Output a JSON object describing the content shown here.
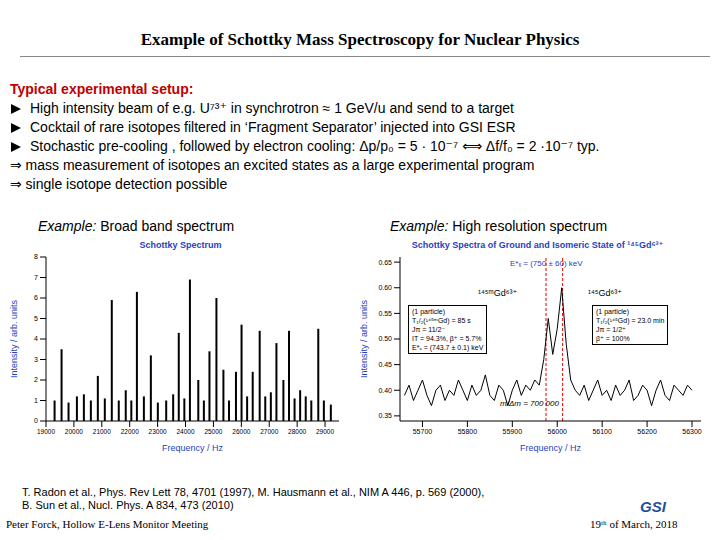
{
  "title": "Example of Schottky Mass Spectroscopy for Nuclear Physics",
  "setup": {
    "heading": "Typical experimental setup:",
    "bullets": [
      "High intensity beam of e.g. U⁷³⁺ in synchrotron ≈ 1 GeV/u and send to a target",
      "Cocktail of rare isotopes filtered in ‘Fragment Separator’ injected into GSI ESR",
      "Stochastic pre-cooling , followed by electron cooling: Δp/p₀ = 5 · 10⁻⁷ ⟺ Δf/f₀ = 2 ·10⁻⁷ typ."
    ],
    "results": [
      "⇒ mass measurement of isotopes an excited states as a large experimental program",
      "⇒ single isotope detection possible"
    ]
  },
  "chart_data": [
    {
      "type": "bar",
      "caption_lead": "Example:",
      "caption": "Broad band spectrum",
      "title": "Schottky Spectrum",
      "x_label": "Frequency / Hz",
      "y_label": "Intensity / arb. units",
      "color": "#000000",
      "grid": false,
      "x": [
        19300,
        19550,
        19800,
        20100,
        20350,
        20600,
        20850,
        21100,
        21350,
        21600,
        21850,
        22050,
        22250,
        22500,
        22750,
        23000,
        23300,
        23550,
        23750,
        23950,
        24150,
        24450,
        24650,
        24850,
        25100,
        25350,
        25550,
        25800,
        26000,
        26200,
        26400,
        26650,
        26850,
        27050,
        27250,
        27500,
        27700,
        27900,
        28100,
        28300,
        28500,
        28750,
        28950,
        29200
      ],
      "values": [
        1.0,
        3.5,
        0.9,
        1.2,
        1.3,
        1.0,
        2.2,
        1.1,
        5.9,
        1.0,
        1.5,
        1.0,
        6.3,
        1.2,
        3.2,
        0.9,
        1.0,
        1.3,
        4.3,
        1.1,
        6.9,
        2.0,
        1.0,
        3.4,
        6.0,
        2.5,
        1.0,
        2.4,
        4.7,
        1.2,
        2.4,
        4.4,
        1.2,
        1.4,
        3.8,
        2.0,
        4.4,
        1.1,
        1.5,
        1.2,
        1.0,
        4.5,
        1.0,
        0.8
      ],
      "xlim": [
        19000,
        29500
      ],
      "ylim": [
        0,
        8
      ],
      "xticks": [
        19000,
        20000,
        21000,
        22000,
        23000,
        24000,
        25000,
        26000,
        27000,
        28000,
        29000
      ],
      "yticks": [
        0,
        1,
        2,
        3,
        4,
        5,
        6,
        7,
        8
      ]
    },
    {
      "type": "line",
      "caption_lead": "Example:",
      "caption": "High resolution spectrum",
      "title": "Schottky Spectra of Ground and Isomeric State of ¹⁴⁵Gd⁶³⁺",
      "x_label": "Frequency / Hz",
      "y_label": "Intensity / arb. units",
      "color": "#000000",
      "grid": false,
      "x": [
        55660,
        55670,
        55680,
        55690,
        55700,
        55710,
        55720,
        55730,
        55740,
        55750,
        55760,
        55770,
        55780,
        55790,
        55800,
        55810,
        55820,
        55830,
        55840,
        55850,
        55860,
        55870,
        55880,
        55890,
        55900,
        55910,
        55920,
        55930,
        55940,
        55950,
        55960,
        55970,
        55980,
        55990,
        56000,
        56010,
        56020,
        56030,
        56040,
        56050,
        56060,
        56070,
        56080,
        56090,
        56100,
        56110,
        56120,
        56130,
        56140,
        56150,
        56160,
        56170,
        56180,
        56190,
        56200,
        56210,
        56220,
        56230,
        56240,
        56250,
        56260,
        56270,
        56280,
        56290,
        56300
      ],
      "values": [
        0.39,
        0.41,
        0.38,
        0.4,
        0.42,
        0.39,
        0.37,
        0.4,
        0.41,
        0.38,
        0.4,
        0.39,
        0.42,
        0.4,
        0.38,
        0.41,
        0.39,
        0.4,
        0.43,
        0.39,
        0.38,
        0.41,
        0.4,
        0.37,
        0.4,
        0.42,
        0.39,
        0.41,
        0.4,
        0.42,
        0.41,
        0.46,
        0.54,
        0.47,
        0.52,
        0.6,
        0.49,
        0.42,
        0.4,
        0.39,
        0.41,
        0.38,
        0.4,
        0.42,
        0.39,
        0.4,
        0.38,
        0.41,
        0.39,
        0.4,
        0.42,
        0.38,
        0.39,
        0.41,
        0.4,
        0.37,
        0.4,
        0.42,
        0.39,
        0.38,
        0.41,
        0.4,
        0.39,
        0.41,
        0.4
      ],
      "xlim": [
        55650,
        56320
      ],
      "ylim": [
        0.34,
        0.66
      ],
      "xticks": [
        55700,
        55800,
        55900,
        56000,
        56100,
        56200,
        56300
      ],
      "yticks": [
        0.35,
        {
          "value": 0.4,
          "label": "0.40"
        },
        0.45,
        {
          "value": 0.5,
          "label": "0.50"
        },
        0.55,
        {
          "value": 0.6,
          "label": "0.60"
        },
        0.65
      ],
      "reference_lines": [
        55975,
        56012
      ],
      "annotations": {
        "energy": "E*ₓ = (750 ± 60) keV",
        "isomer_label": "¹⁴⁵ᵐGd⁶³⁺",
        "ground_label": "¹⁴⁵Gd⁶³⁺",
        "isomer_box": [
          "(1 particle)",
          "T₁/₂(¹⁴⁵ᵐGd) = 85 s",
          "Jπ = 11/2⁻",
          "IT = 94.3%, β⁺ = 5.7%",
          "E*ₓ = (743.7 ± 0.1) keV"
        ],
        "ground_box": [
          "(1 particle)",
          "T₁/₂(¹⁴⁵Gd) = 23.0 min",
          "Jπ = 1/2⁺",
          "β⁺ = 100%"
        ],
        "resolution": "m/Δm = 700 000"
      }
    }
  ],
  "references": [
    "T. Radon et al., Phys. Rev Lett 78, 4701 (1997), M. Hausmann et al., NIM A 446, p. 569 (2000),",
    "B. Sun et al., Nucl. Phys. A 834, 473 (2010)"
  ],
  "footer": {
    "author": "Peter Forck, Hollow E-Lens Monitor Meeting",
    "date": "19ᵗʰ of March, 2018",
    "logo": "GSI"
  }
}
